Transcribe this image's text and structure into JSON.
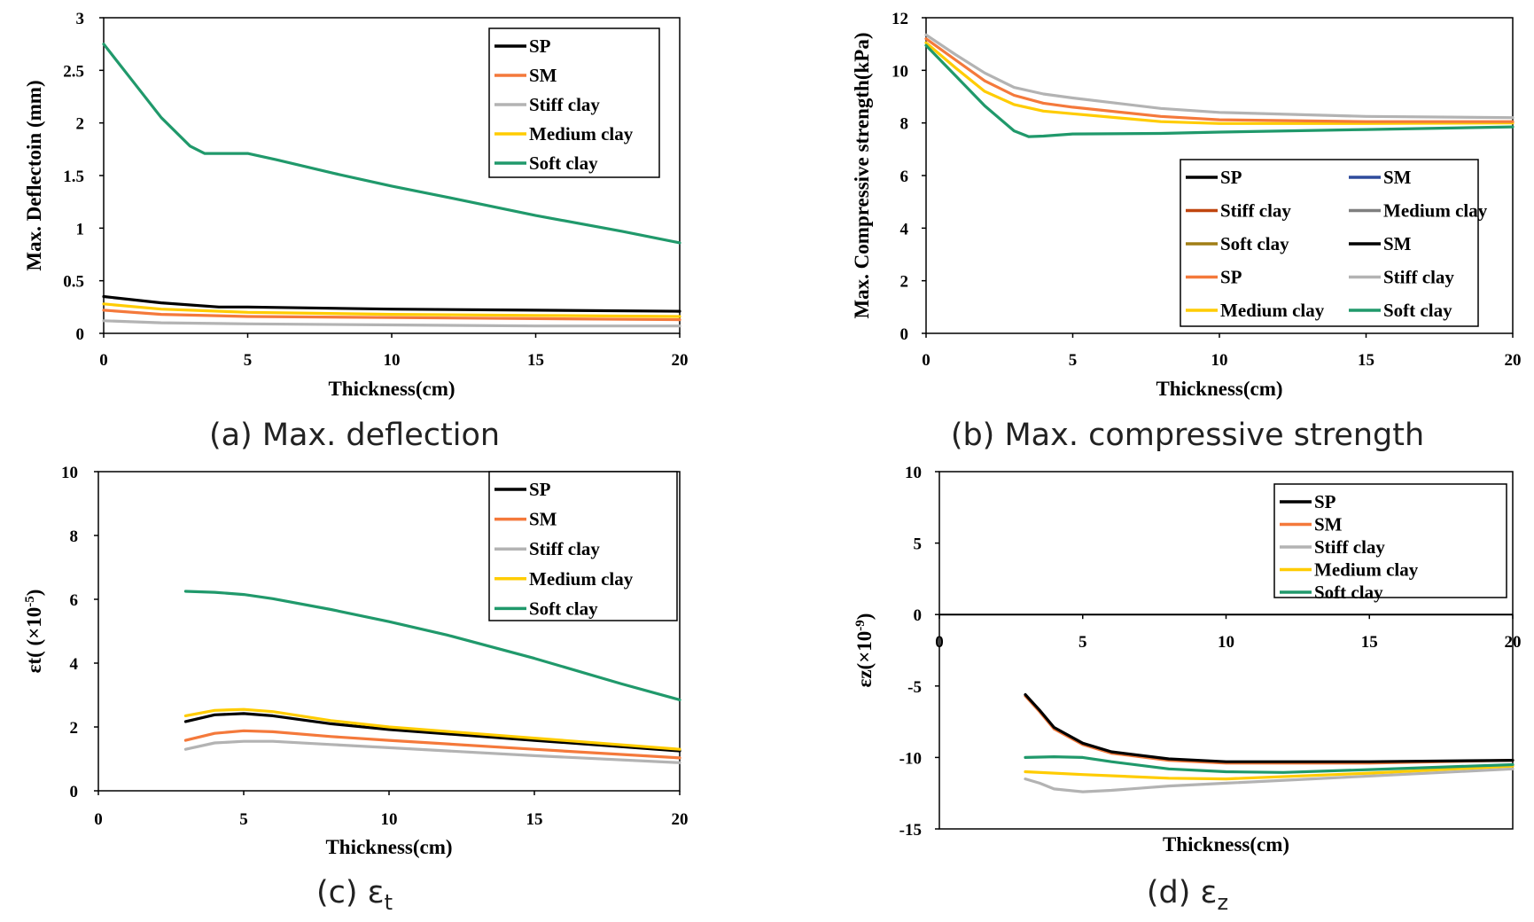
{
  "colors": {
    "SP": "#000000",
    "SM": "#f4793b",
    "Stiff clay": "#b3b3b3",
    "Medium clay": "#ffcc00",
    "Soft clay": "#20996b",
    "SM_dark": "#2f4b9c",
    "Stiff clay_dark": "#c0450f",
    "Medium clay_dark": "#7f7f7f",
    "Soft clay_dark": "#a07e16"
  },
  "chart_data": [
    {
      "id": "a",
      "type": "line",
      "caption_prefix": "(a) ",
      "caption": "Max. deflection",
      "xlabel": "Thickness(cm)",
      "ylabel": "Max. Deflectoin (mm)",
      "xlim": [
        0,
        20
      ],
      "ylim": [
        0,
        3
      ],
      "xticks": [
        0,
        5,
        10,
        15,
        20
      ],
      "yticks": [
        0,
        0.5,
        1,
        1.5,
        2,
        2.5,
        3
      ],
      "yticklabels": [
        "0",
        "0.5",
        "1",
        "1.5",
        "2",
        "2.5",
        "3"
      ],
      "legend_position": "top-right",
      "legend_columns": 1,
      "legend": [
        {
          "label": "SP",
          "color_key": "SP"
        },
        {
          "label": "SM",
          "color_key": "SM"
        },
        {
          "label": "Stiff clay",
          "color_key": "Stiff clay"
        },
        {
          "label": "Medium clay",
          "color_key": "Medium clay"
        },
        {
          "label": "Soft clay",
          "color_key": "Soft clay"
        }
      ],
      "series": [
        {
          "name": "Stiff clay",
          "color_key": "Stiff clay",
          "x": [
            0,
            2,
            5,
            10,
            15,
            20
          ],
          "y": [
            0.12,
            0.1,
            0.09,
            0.08,
            0.07,
            0.07
          ]
        },
        {
          "name": "SM",
          "color_key": "SM",
          "x": [
            0,
            2,
            5,
            10,
            15,
            20
          ],
          "y": [
            0.22,
            0.18,
            0.16,
            0.15,
            0.14,
            0.13
          ]
        },
        {
          "name": "Medium clay",
          "color_key": "Medium clay",
          "x": [
            0,
            2,
            5,
            10,
            15,
            20
          ],
          "y": [
            0.28,
            0.23,
            0.2,
            0.18,
            0.17,
            0.16
          ]
        },
        {
          "name": "SP",
          "color_key": "SP",
          "x": [
            0,
            2,
            4,
            5,
            10,
            15,
            20
          ],
          "y": [
            0.35,
            0.29,
            0.25,
            0.25,
            0.23,
            0.22,
            0.21
          ]
        },
        {
          "name": "Soft clay",
          "color_key": "Soft clay",
          "x": [
            0,
            1,
            2,
            3,
            3.5,
            4,
            5,
            6,
            8,
            10,
            12,
            15,
            18,
            20
          ],
          "y": [
            2.75,
            2.4,
            2.05,
            1.78,
            1.71,
            1.71,
            1.71,
            1.65,
            1.52,
            1.4,
            1.29,
            1.12,
            0.97,
            0.86
          ]
        }
      ]
    },
    {
      "id": "b",
      "type": "line",
      "caption_prefix": "(b) ",
      "caption": "Max. compressive strength",
      "xlabel": "Thickness(cm)",
      "ylabel": "Max. Compressive strength(kPa)",
      "xlim": [
        0,
        20
      ],
      "ylim": [
        0,
        12
      ],
      "xticks": [
        0,
        5,
        10,
        15,
        20
      ],
      "yticks": [
        0,
        2,
        4,
        6,
        8,
        10,
        12
      ],
      "yticklabels": [
        "0",
        "2",
        "4",
        "6",
        "8",
        "10",
        "12"
      ],
      "legend_position": "lower-right",
      "legend_columns": 2,
      "legend": [
        {
          "label": "SP",
          "color_key": "SP"
        },
        {
          "label": "SM",
          "color_key": "SM_dark"
        },
        {
          "label": "Stiff clay",
          "color_key": "Stiff clay_dark"
        },
        {
          "label": "Medium clay",
          "color_key": "Medium clay_dark"
        },
        {
          "label": "Soft clay",
          "color_key": "Soft clay_dark"
        },
        {
          "label": "SM",
          "color_key": "SP"
        },
        {
          "label": "SP",
          "color_key": "SM"
        },
        {
          "label": "Stiff clay",
          "color_key": "Stiff clay"
        },
        {
          "label": "Medium clay",
          "color_key": "Medium clay"
        },
        {
          "label": "Soft clay",
          "color_key": "Soft clay"
        }
      ],
      "series": [
        {
          "name": "Medium clay",
          "color_key": "Medium clay",
          "x": [
            0,
            1,
            2,
            3,
            4,
            5,
            8,
            10,
            15,
            20
          ],
          "y": [
            11.05,
            10.1,
            9.2,
            8.7,
            8.45,
            8.35,
            8.05,
            7.98,
            7.98,
            8.0
          ]
        },
        {
          "name": "SP",
          "color_key": "SM",
          "x": [
            0,
            1,
            2,
            3,
            4,
            5,
            8,
            10,
            15,
            20
          ],
          "y": [
            11.2,
            10.4,
            9.6,
            9.05,
            8.75,
            8.6,
            8.25,
            8.12,
            8.05,
            8.05
          ]
        },
        {
          "name": "Stiff clay",
          "color_key": "Stiff clay",
          "x": [
            0,
            1,
            2,
            3,
            4,
            5,
            8,
            10,
            15,
            20
          ],
          "y": [
            11.35,
            10.6,
            9.9,
            9.35,
            9.1,
            8.95,
            8.55,
            8.4,
            8.25,
            8.2
          ]
        },
        {
          "name": "Soft clay",
          "color_key": "Soft clay",
          "x": [
            0,
            1,
            2,
            3,
            3.5,
            4,
            5,
            8,
            10,
            15,
            20
          ],
          "y": [
            10.95,
            9.8,
            8.65,
            7.7,
            7.48,
            7.5,
            7.58,
            7.6,
            7.65,
            7.75,
            7.85
          ]
        }
      ]
    },
    {
      "id": "c",
      "type": "line",
      "caption_prefix": "(c) ",
      "caption": "εt",
      "caption_base": "ε",
      "caption_sub": "t",
      "xlabel": "Thickness(cm)",
      "ylabel": "εt( (×10",
      "ylabel_sup": "-5",
      "ylabel_tail": ")",
      "xlim": [
        0,
        20
      ],
      "ylim": [
        0,
        10
      ],
      "xticks": [
        0,
        5,
        10,
        15,
        20
      ],
      "yticks": [
        0,
        2,
        4,
        6,
        8,
        10
      ],
      "yticklabels": [
        "0",
        "2",
        "4",
        "6",
        "8",
        "10"
      ],
      "legend_position": "top-right",
      "legend_columns": 1,
      "legend": [
        {
          "label": "SP",
          "color_key": "SP"
        },
        {
          "label": "SM",
          "color_key": "SM"
        },
        {
          "label": "Stiff clay",
          "color_key": "Stiff clay"
        },
        {
          "label": "Medium clay",
          "color_key": "Medium clay"
        },
        {
          "label": "Soft clay",
          "color_key": "Soft clay"
        }
      ],
      "series": [
        {
          "name": "Stiff clay",
          "color_key": "Stiff clay",
          "x": [
            3,
            4,
            5,
            6,
            8,
            10,
            15,
            20
          ],
          "y": [
            1.3,
            1.5,
            1.55,
            1.55,
            1.45,
            1.35,
            1.1,
            0.88
          ]
        },
        {
          "name": "SM",
          "color_key": "SM",
          "x": [
            3,
            4,
            5,
            6,
            8,
            10,
            15,
            20
          ],
          "y": [
            1.58,
            1.8,
            1.88,
            1.85,
            1.7,
            1.58,
            1.3,
            1.03
          ]
        },
        {
          "name": "SP",
          "color_key": "SP",
          "x": [
            3,
            4,
            5,
            6,
            8,
            10,
            15,
            20
          ],
          "y": [
            2.17,
            2.38,
            2.42,
            2.35,
            2.1,
            1.92,
            1.58,
            1.25
          ]
        },
        {
          "name": "Medium clay",
          "color_key": "Medium clay",
          "x": [
            3,
            4,
            5,
            6,
            8,
            10,
            15,
            20
          ],
          "y": [
            2.35,
            2.52,
            2.55,
            2.48,
            2.2,
            2.0,
            1.65,
            1.3
          ]
        },
        {
          "name": "Soft clay",
          "color_key": "Soft clay",
          "x": [
            3,
            4,
            5,
            6,
            8,
            10,
            12,
            15,
            18,
            20
          ],
          "y": [
            6.25,
            6.22,
            6.15,
            6.02,
            5.68,
            5.3,
            4.88,
            4.15,
            3.35,
            2.85
          ]
        }
      ]
    },
    {
      "id": "d",
      "type": "line",
      "caption_prefix": "(d) ",
      "caption": "εz",
      "caption_base": "ε",
      "caption_sub": "z",
      "xlabel": "Thickness(cm)",
      "ylabel": "εz(×10",
      "ylabel_sup": "-9",
      "ylabel_tail": ")",
      "xlim": [
        0,
        20
      ],
      "ylim": [
        -15,
        10
      ],
      "xticks": [
        0,
        5,
        10,
        15,
        20
      ],
      "yticks": [
        -15,
        -10,
        -5,
        0,
        5,
        10
      ],
      "yticklabels": [
        "-15",
        "-10",
        "-5",
        "0",
        "5",
        "10"
      ],
      "legend_position": "top-right",
      "legend_columns": 1,
      "legend": [
        {
          "label": "SP",
          "color_key": "SP"
        },
        {
          "label": "SM",
          "color_key": "SM"
        },
        {
          "label": "Stiff clay",
          "color_key": "Stiff clay"
        },
        {
          "label": "Medium clay",
          "color_key": "Medium clay"
        },
        {
          "label": "Soft clay",
          "color_key": "Soft clay"
        }
      ],
      "series": [
        {
          "name": "Stiff clay",
          "color_key": "Stiff clay",
          "x": [
            3,
            3.5,
            4,
            5,
            6,
            8,
            10,
            15,
            20
          ],
          "y": [
            -11.5,
            -11.8,
            -12.2,
            -12.4,
            -12.3,
            -12.0,
            -11.8,
            -11.3,
            -10.8
          ]
        },
        {
          "name": "Medium clay",
          "color_key": "Medium clay",
          "x": [
            3,
            5,
            8,
            10,
            15,
            20
          ],
          "y": [
            -11.0,
            -11.2,
            -11.45,
            -11.5,
            -11.1,
            -10.6
          ]
        },
        {
          "name": "Soft clay",
          "color_key": "Soft clay",
          "x": [
            3,
            4,
            5,
            6,
            8,
            10,
            12,
            15,
            20
          ],
          "y": [
            -10.0,
            -9.95,
            -10.0,
            -10.3,
            -10.8,
            -11.0,
            -11.05,
            -10.85,
            -10.5
          ]
        },
        {
          "name": "SM",
          "color_key": "SM",
          "x": [
            3,
            3.5,
            4,
            5,
            6,
            8,
            10,
            15,
            20
          ],
          "y": [
            -5.7,
            -6.8,
            -8.0,
            -9.1,
            -9.7,
            -10.2,
            -10.4,
            -10.4,
            -10.2
          ]
        },
        {
          "name": "SP",
          "color_key": "SP",
          "x": [
            3,
            3.5,
            4,
            5,
            6,
            8,
            10,
            15,
            20
          ],
          "y": [
            -5.6,
            -6.7,
            -7.9,
            -9.0,
            -9.6,
            -10.1,
            -10.3,
            -10.3,
            -10.2
          ]
        }
      ]
    }
  ]
}
